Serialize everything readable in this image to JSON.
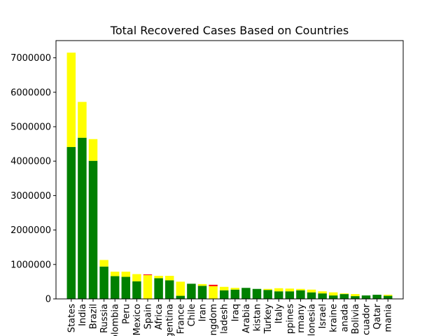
{
  "chart_data": {
    "type": "bar",
    "stacked": true,
    "title": "Total Recovered Cases Based on Countries",
    "xlabel": "",
    "ylabel": "",
    "ylim": [
      0,
      7500000
    ],
    "yticks": [
      0,
      1000000,
      2000000,
      3000000,
      4000000,
      5000000,
      6000000,
      7000000
    ],
    "ytick_labels": [
      "0",
      "1000000",
      "2000000",
      "3000000",
      "4000000",
      "5000000",
      "6000000",
      "7000000"
    ],
    "grid": false,
    "colors": {
      "series_green": "#008000",
      "series_yellow": "#ffff00",
      "series_red": "#ff0000"
    },
    "categories": [
      "States",
      "India",
      "Brazil",
      "Russia",
      "olombia",
      "Peru",
      "Mexico",
      "Spain",
      "Africa",
      "rgentina",
      "France",
      "Chile",
      "Iran",
      "ngdom",
      "ladesh",
      "Iraq",
      "Arabia",
      "kistan",
      "Turkey",
      "Italy",
      "ppines",
      "rmany",
      "lonesia",
      "Israel",
      "kraine",
      "anada",
      "Bolivia",
      "cuador",
      "Qatar",
      "mania"
    ],
    "series": [
      {
        "color": "#008000",
        "values": [
          4410000,
          4680000,
          4010000,
          940000,
          660000,
          640000,
          510000,
          0,
          600000,
          540000,
          90000,
          440000,
          380000,
          0,
          250000,
          270000,
          320000,
          290000,
          260000,
          220000,
          220000,
          250000,
          190000,
          160000,
          100000,
          140000,
          80000,
          100000,
          120000,
          90000
        ]
      },
      {
        "color": "#ffff00",
        "values": [
          2740000,
          1040000,
          630000,
          190000,
          130000,
          150000,
          210000,
          690000,
          70000,
          130000,
          410000,
          0,
          50000,
          370000,
          100000,
          50000,
          0,
          0,
          30000,
          90000,
          80000,
          40000,
          80000,
          60000,
          90000,
          20000,
          60000,
          0,
          0,
          30000
        ]
      },
      {
        "color": "#ff0000",
        "values": [
          0,
          0,
          0,
          0,
          0,
          0,
          0,
          20000,
          0,
          0,
          0,
          0,
          0,
          40000,
          0,
          0,
          0,
          0,
          0,
          0,
          0,
          0,
          0,
          0,
          0,
          0,
          0,
          0,
          0,
          0
        ]
      }
    ]
  }
}
